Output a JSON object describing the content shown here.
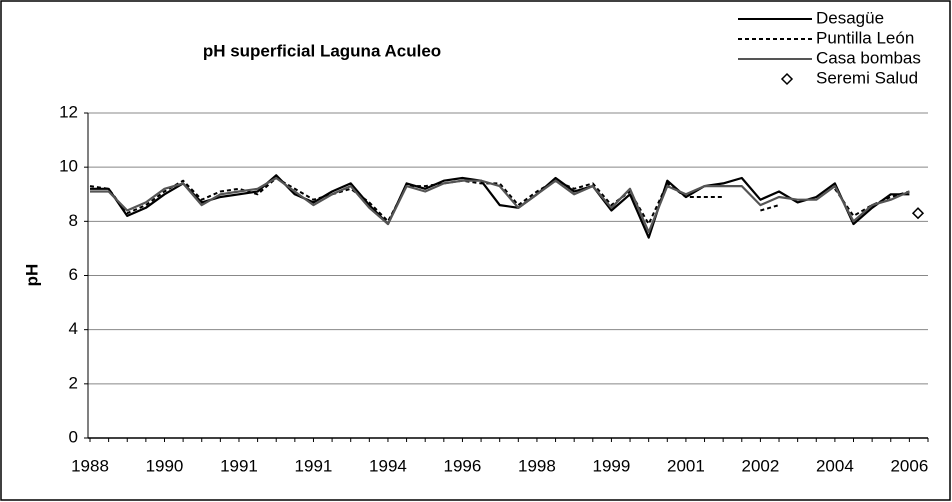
{
  "chart_data": {
    "type": "line",
    "title": "pH superficial Laguna Aculeo",
    "y_label": "pH",
    "categories": [
      "1988",
      null,
      null,
      null,
      "1990",
      null,
      null,
      null,
      "1991",
      null,
      null,
      null,
      "1991",
      null,
      null,
      null,
      "1994",
      null,
      null,
      null,
      "1996",
      null,
      null,
      null,
      "1998",
      null,
      null,
      null,
      "1999",
      null,
      null,
      null,
      "2001",
      null,
      null,
      null,
      "2002",
      null,
      null,
      null,
      "2004",
      null,
      null,
      null,
      "2006",
      null
    ],
    "ylim": [
      0,
      12
    ],
    "yticks": [
      0,
      2,
      4,
      6,
      8,
      10,
      12
    ],
    "grid": true,
    "legend": "top-right",
    "series": [
      {
        "name": "Desagüe",
        "color": "#000000",
        "line_style": "solid",
        "values": [
          9.2,
          9.2,
          8.2,
          8.5,
          9.0,
          9.4,
          8.7,
          8.9,
          9.0,
          9.1,
          9.7,
          9.0,
          8.7,
          9.1,
          9.4,
          8.6,
          7.9,
          9.4,
          9.2,
          9.5,
          9.6,
          9.5,
          8.6,
          8.5,
          9.0,
          9.6,
          9.1,
          9.3,
          8.4,
          9.0,
          7.4,
          9.5,
          8.9,
          9.3,
          9.4,
          9.6,
          8.8,
          9.1,
          8.7,
          8.9,
          9.4,
          7.9,
          8.5,
          9.0,
          9.0,
          null
        ]
      },
      {
        "name": "Puntilla León",
        "color": "#000000",
        "line_style": "dashed",
        "values": [
          9.3,
          9.2,
          8.3,
          8.6,
          9.1,
          9.5,
          8.8,
          9.1,
          9.2,
          9.0,
          9.6,
          9.2,
          8.8,
          9.0,
          9.2,
          8.7,
          8.0,
          9.3,
          9.3,
          9.4,
          9.5,
          9.4,
          9.4,
          8.6,
          9.1,
          9.5,
          9.2,
          9.4,
          8.6,
          9.1,
          7.9,
          9.4,
          8.9,
          8.9,
          8.9,
          null,
          8.4,
          8.6,
          null,
          null,
          9.2,
          8.2,
          8.6,
          8.9,
          9.1,
          null
        ]
      },
      {
        "name": "Casa bombas",
        "color": "#555555",
        "line_style": "solid",
        "values": [
          9.1,
          9.1,
          8.4,
          8.7,
          9.2,
          9.4,
          8.6,
          9.0,
          9.1,
          9.2,
          9.6,
          9.1,
          8.6,
          9.0,
          9.3,
          8.5,
          7.9,
          9.3,
          9.1,
          9.4,
          9.5,
          9.5,
          9.3,
          8.5,
          9.0,
          9.5,
          9.0,
          9.3,
          8.5,
          9.2,
          7.6,
          9.3,
          9.0,
          9.3,
          9.3,
          9.3,
          8.6,
          8.9,
          8.8,
          8.8,
          9.3,
          8.0,
          8.6,
          8.8,
          9.1,
          null
        ]
      },
      {
        "name": "Seremi Salud",
        "color": "#000000",
        "marker": "diamond",
        "values": [
          null,
          null,
          null,
          null,
          null,
          null,
          null,
          null,
          null,
          null,
          null,
          null,
          null,
          null,
          null,
          null,
          null,
          null,
          null,
          null,
          null,
          null,
          null,
          null,
          null,
          null,
          null,
          null,
          null,
          null,
          null,
          null,
          null,
          null,
          null,
          null,
          null,
          null,
          null,
          null,
          null,
          null,
          null,
          null,
          null,
          8.3
        ]
      }
    ]
  }
}
